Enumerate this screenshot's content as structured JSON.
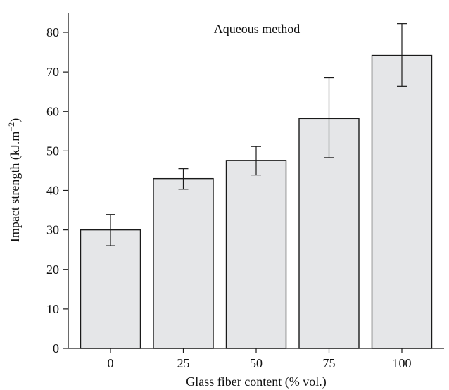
{
  "chart_data": {
    "type": "bar",
    "annotation": "Aqueous method",
    "xlabel": "Glass fiber content (% vol.)",
    "ylabel": "Impact strength (kJ.m",
    "ylabel_sup": "−2",
    "ylabel_close": ")",
    "categories": [
      "0",
      "25",
      "50",
      "75",
      "100"
    ],
    "values": [
      30,
      43,
      47.6,
      58.2,
      74.2
    ],
    "error_low": [
      26,
      40.3,
      43.9,
      48.3,
      66.4
    ],
    "error_high": [
      33.9,
      45.5,
      51.1,
      68.5,
      82.2
    ],
    "ylim": [
      0,
      85
    ],
    "yticks": [
      0,
      10,
      20,
      30,
      40,
      50,
      60,
      70,
      80
    ],
    "grid": false,
    "colors": {
      "bar_fill": "#e5e6e8",
      "stroke": "#1a1a1a"
    }
  }
}
